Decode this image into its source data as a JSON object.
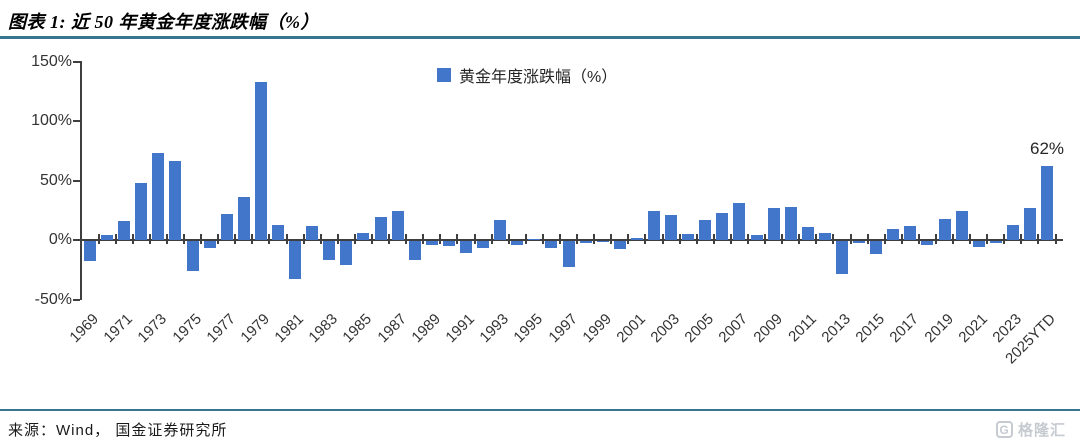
{
  "header": {
    "title": "图表 1:  近 50 年黄金年度涨跌幅（%）"
  },
  "chart_data": {
    "type": "bar",
    "title": "近 50 年黄金年度涨跌幅（%）",
    "legend": "黄金年度涨跌幅（%）",
    "legend_position": "top-center",
    "grid": false,
    "xlabel": "",
    "ylabel": "",
    "ylim": [
      -50,
      150
    ],
    "ytick_labels": [
      "150%",
      "100%",
      "50%",
      "0%",
      "-50%"
    ],
    "ytick_values": [
      150,
      100,
      50,
      0,
      -50
    ],
    "xtick_label_step": 2,
    "bar_color": "#4176CB",
    "categories": [
      "1969",
      "1970",
      "1971",
      "1972",
      "1973",
      "1974",
      "1975",
      "1976",
      "1977",
      "1978",
      "1979",
      "1980",
      "1981",
      "1982",
      "1983",
      "1984",
      "1985",
      "1986",
      "1987",
      "1988",
      "1989",
      "1990",
      "1991",
      "1992",
      "1993",
      "1994",
      "1995",
      "1996",
      "1997",
      "1998",
      "1999",
      "2000",
      "2001",
      "2002",
      "2003",
      "2004",
      "2005",
      "2006",
      "2007",
      "2008",
      "2009",
      "2010",
      "2011",
      "2012",
      "2013",
      "2014",
      "2015",
      "2016",
      "2017",
      "2018",
      "2019",
      "2020",
      "2021",
      "2022",
      "2023",
      "2024",
      "2025YTD"
    ],
    "values": [
      -17,
      4,
      16,
      48,
      73,
      66,
      -25,
      -6,
      22,
      36,
      133,
      13,
      -32,
      12,
      -16,
      -20,
      6,
      19,
      24,
      -16,
      -3,
      -4,
      -10,
      -6,
      17,
      -3,
      1,
      -6,
      -22,
      -2,
      -1,
      -7,
      2,
      24,
      21,
      5,
      17,
      23,
      31,
      4,
      27,
      28,
      11,
      6,
      -28,
      -2,
      -11,
      9,
      12,
      -3,
      18,
      24,
      -5,
      -2,
      13,
      27,
      62
    ],
    "annotations": [
      {
        "text": "62%",
        "category": "2025YTD"
      }
    ]
  },
  "footer": {
    "source": "来源：Wind，  国金证券研究所",
    "logo_g": "G",
    "logo_text": "格隆汇"
  },
  "colors": {
    "accent_rule": "#38758F",
    "bar": "#4176CB",
    "axis": "#3F3F3F",
    "logo_gray": "#c6cbd1"
  }
}
